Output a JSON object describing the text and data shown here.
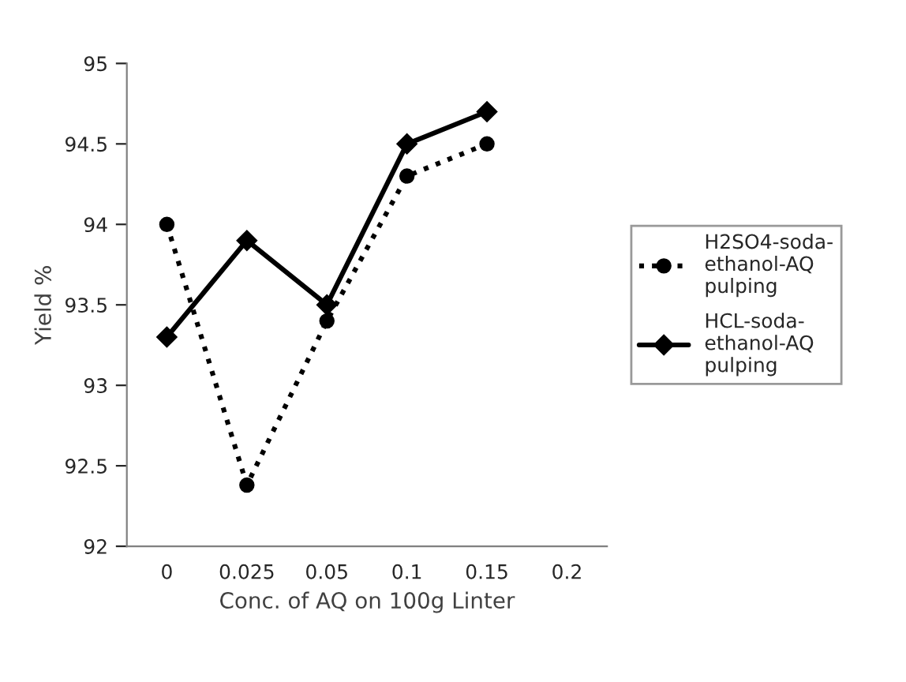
{
  "chart_data": {
    "type": "line",
    "xlabel": "Conc. of AQ on 100g Linter",
    "ylabel": "Yield %",
    "categories": [
      "0",
      "0.025",
      "0.05",
      "0.1",
      "0.15",
      "0.2"
    ],
    "series": [
      {
        "name": "H2SO4-soda-\nethanol-AQ\npulping",
        "color": "#000000",
        "marker": "circle",
        "line_style": "dotted",
        "values": [
          94,
          92.38,
          93.4,
          94.3,
          94.5,
          null
        ]
      },
      {
        "name": "HCL-soda-\nethanol-AQ\npulping",
        "color": "#000000",
        "marker": "diamond",
        "line_style": "solid",
        "values": [
          93.3,
          93.9,
          93.5,
          94.5,
          94.7,
          null
        ]
      }
    ],
    "ylim": [
      92,
      95
    ],
    "yticks": [
      92,
      92.5,
      93,
      93.5,
      94,
      94.5,
      95
    ],
    "grid": false,
    "legend": "right"
  }
}
